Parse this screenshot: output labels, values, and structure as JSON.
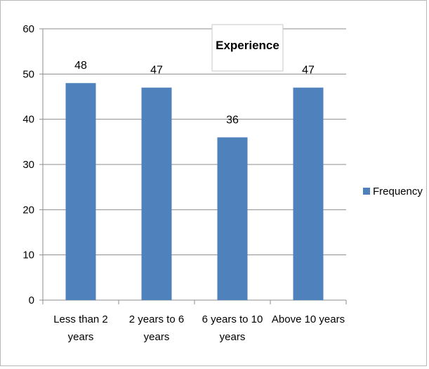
{
  "chart_data": {
    "type": "bar",
    "title": "Experience",
    "categories": [
      [
        "Less than 2",
        "years"
      ],
      [
        "2 years to 6",
        "years"
      ],
      [
        "6 years to 10",
        "years"
      ],
      [
        "Above 10 years"
      ]
    ],
    "series": [
      {
        "name": "Frequency",
        "values": [
          48,
          47,
          36,
          47
        ],
        "color": "#4f81bd"
      }
    ],
    "ylim": [
      0,
      60
    ],
    "yticks": [
      0,
      10,
      20,
      30,
      40,
      50,
      60
    ],
    "xlabel": "",
    "ylabel": "",
    "grid": true,
    "legend": "right",
    "data_labels": true
  }
}
